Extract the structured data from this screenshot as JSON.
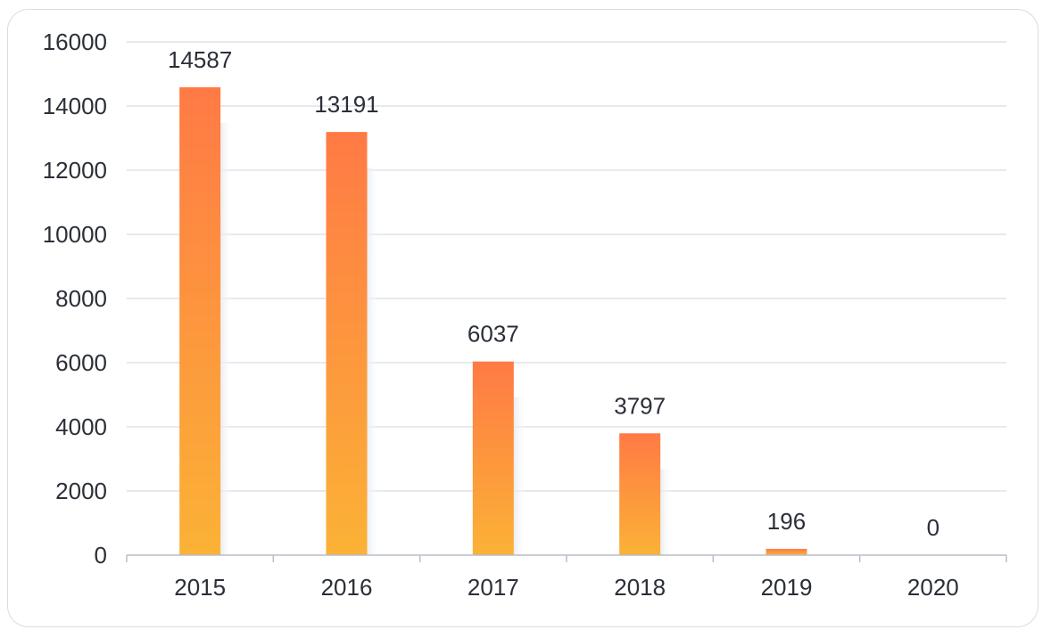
{
  "chart_data": {
    "type": "bar",
    "title": "",
    "xlabel": "",
    "ylabel": "",
    "categories": [
      "2015",
      "2016",
      "2017",
      "2018",
      "2019",
      "2020"
    ],
    "values": [
      14587,
      13191,
      6037,
      3797,
      196,
      0
    ],
    "data_labels": [
      "14587",
      "13191",
      "6037",
      "3797",
      "196",
      "0"
    ],
    "ylim": [
      0,
      16000
    ],
    "yticks": [
      0,
      2000,
      4000,
      6000,
      8000,
      10000,
      12000,
      14000,
      16000
    ],
    "ytick_labels": [
      "0",
      "2000",
      "4000",
      "6000",
      "8000",
      "10000",
      "12000",
      "14000",
      "16000"
    ],
    "grid": true,
    "legend": "none",
    "colors": {
      "bar_top": "#ff7a45",
      "bar_bottom": "#fbb236",
      "grid": "#dfe2ea",
      "axis": "#b9bdc7",
      "text": "#2b2f38"
    }
  }
}
